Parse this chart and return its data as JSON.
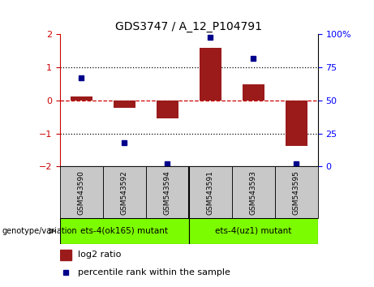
{
  "title": "GDS3747 / A_12_P104791",
  "samples": [
    "GSM543590",
    "GSM543592",
    "GSM543594",
    "GSM543591",
    "GSM543593",
    "GSM543595"
  ],
  "log2_ratio": [
    0.12,
    -0.22,
    -0.55,
    1.6,
    0.5,
    -1.38
  ],
  "percentile_rank": [
    67,
    18,
    2,
    98,
    82,
    2
  ],
  "ylim_left": [
    -2,
    2
  ],
  "ylim_right": [
    0,
    100
  ],
  "yticks_left": [
    -2,
    -1,
    0,
    1,
    2
  ],
  "yticks_right": [
    0,
    25,
    50,
    75,
    100
  ],
  "ytick_labels_right": [
    "0",
    "25",
    "50",
    "75",
    "100%"
  ],
  "bar_color": "#9B1B1B",
  "dot_color": "#00008B",
  "zero_line_color": "#cc0000",
  "hline_color": "#000000",
  "group1_label": "ets-4(ok165) mutant",
  "group2_label": "ets-4(uz1) mutant",
  "group1_bg": "#c8c8c8",
  "group2_bg": "#7CFC00",
  "group_label_prefix": "genotype/variation",
  "legend_bar_label": "log2 ratio",
  "legend_dot_label": "percentile rank within the sample",
  "bar_width": 0.5,
  "figwidth": 4.61,
  "figheight": 3.54,
  "dpi": 100
}
